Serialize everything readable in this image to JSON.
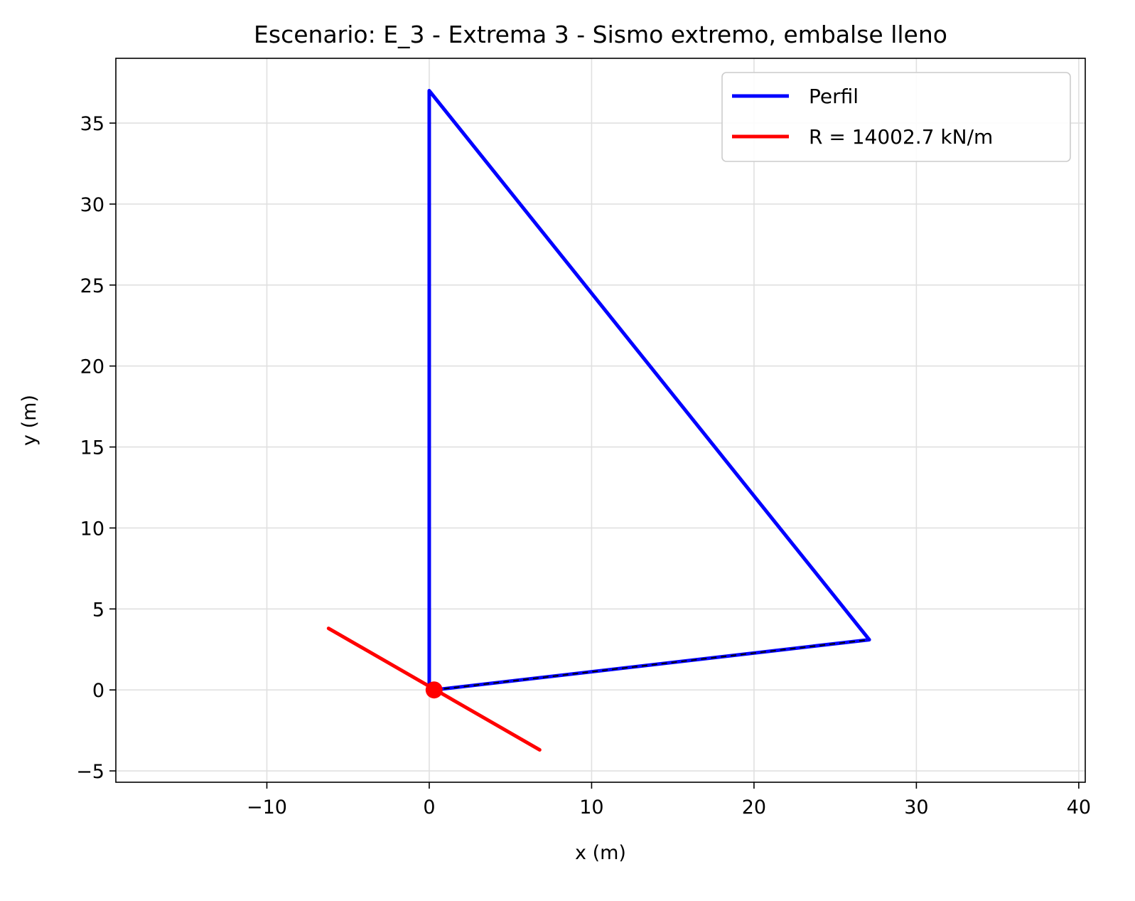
{
  "chart_data": {
    "type": "line",
    "title": "Escenario: E_3 - Extrema 3 - Sismo extremo, embalse lleno",
    "xlabel": "x (m)",
    "ylabel": "y (m)",
    "xlim": [
      -19.3,
      40.4
    ],
    "ylim": [
      -5.7,
      39.0
    ],
    "xticks": [
      -10,
      0,
      10,
      20,
      30,
      40
    ],
    "yticks": [
      -5,
      0,
      5,
      10,
      15,
      20,
      25,
      30,
      35
    ],
    "xtick_labels": [
      "−10",
      "0",
      "10",
      "20",
      "30",
      "40"
    ],
    "ytick_labels": [
      "−5",
      "0",
      "5",
      "10",
      "15",
      "20",
      "25",
      "30",
      "35"
    ],
    "grid": true,
    "legend_position": "top-right",
    "series": [
      {
        "name": "Perfil",
        "color": "#0000ff",
        "x": [
          0,
          0,
          27.1,
          0.3
        ],
        "y": [
          0,
          37.0,
          3.1,
          0
        ]
      },
      {
        "name": "R = 14002.7 kN/m",
        "color": "#ff0000",
        "x": [
          -6.2,
          6.8
        ],
        "y": [
          3.8,
          -3.7
        ]
      }
    ],
    "base_line": {
      "color": "#000000",
      "style": "dashed",
      "x": [
        0.3,
        27.1
      ],
      "y": [
        0,
        3.1
      ]
    },
    "point": {
      "color": "#ff0000",
      "x": 0.3,
      "y": 0
    }
  }
}
